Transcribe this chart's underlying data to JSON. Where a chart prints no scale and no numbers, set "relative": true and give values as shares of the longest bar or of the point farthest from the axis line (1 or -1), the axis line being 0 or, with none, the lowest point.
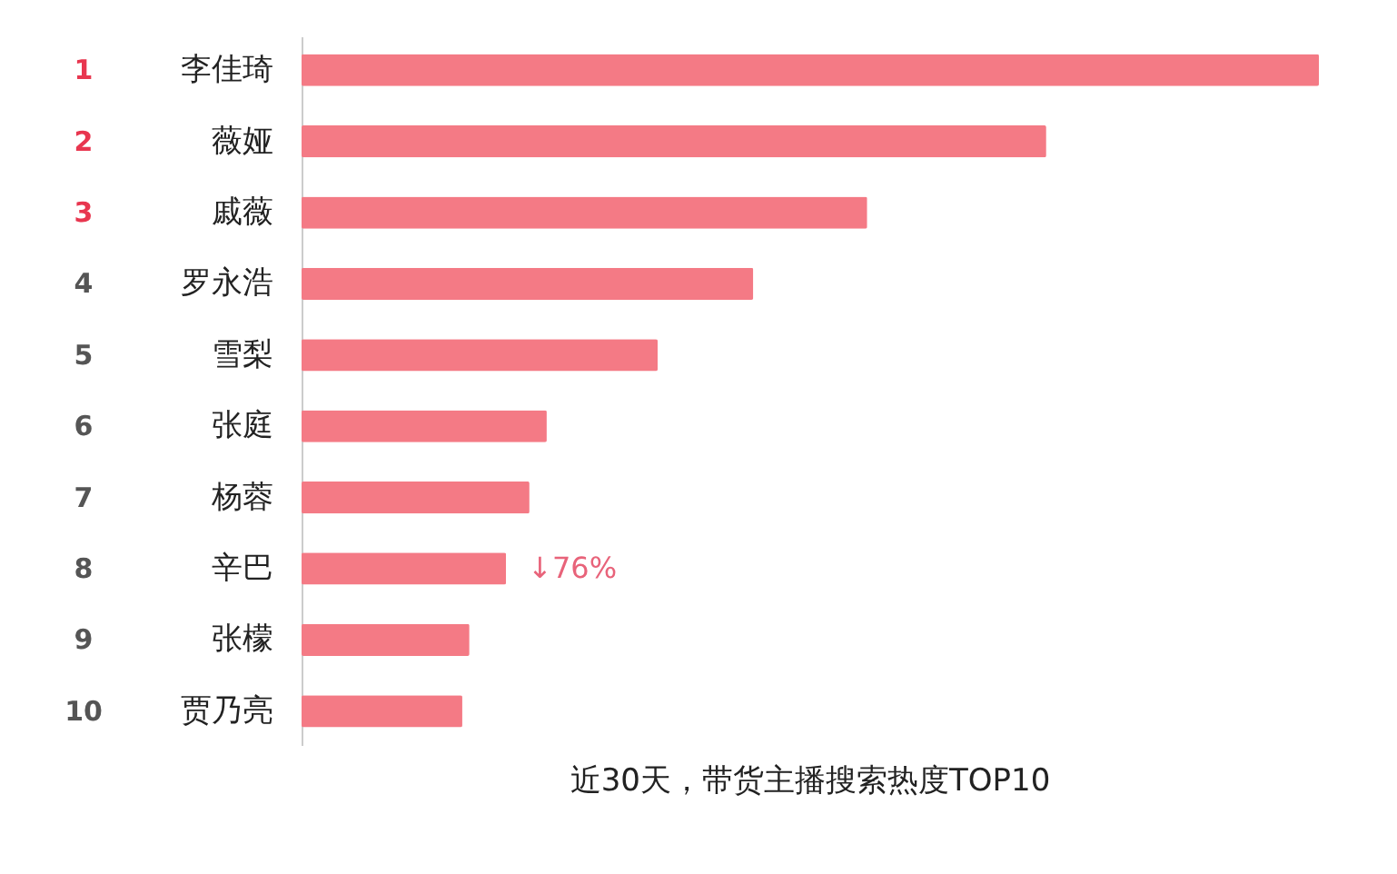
{
  "chart_data": {
    "type": "bar",
    "orientation": "horizontal",
    "relative": true,
    "title": "近30天，带货主播搜索热度TOP10",
    "categories": [
      "李佳琦",
      "薇娅",
      "戚薇",
      "罗永浩",
      "雪梨",
      "张庭",
      "杨蓉",
      "辛巴",
      "张檬",
      "贾乃亮"
    ],
    "values": [
      1,
      0.732,
      0.556,
      0.444,
      0.35,
      0.241,
      0.224,
      0.201,
      0.165,
      0.158
    ],
    "color": "#f47a85",
    "annotations": [
      "1",
      "2",
      "3",
      "4",
      "5",
      "6",
      "7",
      "8",
      "9",
      "10",
      {
        "text": "↓76%",
        "x": 0.201,
        "y": "辛巴"
      }
    ]
  }
}
